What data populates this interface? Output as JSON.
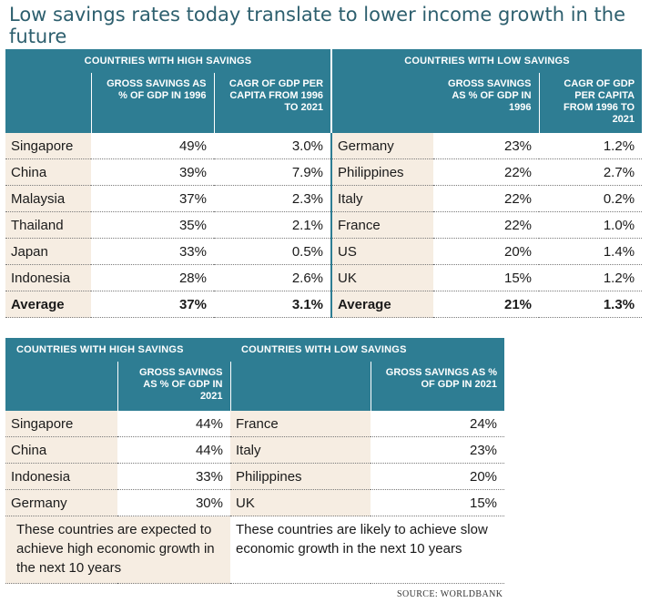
{
  "title": "Low savings rates today translate to lower income growth in the future",
  "table1": {
    "group_high": "COUNTRIES WITH HIGH SAVINGS",
    "group_low": "COUNTRIES WITH LOW SAVINGS",
    "header_high_savings": "GROSS SAVINGS AS % OF GDP IN 1996",
    "header_high_cagr": "CAGR OF GDP PER CAPITA FROM 1996 TO 2021",
    "header_low_savings": "GROSS SAVINGS AS % OF GDP IN 1996",
    "header_low_cagr": "CAGR OF GDP PER CAPITA FROM 1996 TO 2021",
    "rows": [
      {
        "high_country": "Singapore",
        "high_savings": "49%",
        "high_cagr": "3.0%",
        "low_country": "Germany",
        "low_savings": "23%",
        "low_cagr": "1.2%"
      },
      {
        "high_country": "China",
        "high_savings": "39%",
        "high_cagr": "7.9%",
        "low_country": "Philippines",
        "low_savings": "22%",
        "low_cagr": "2.7%"
      },
      {
        "high_country": "Malaysia",
        "high_savings": "37%",
        "high_cagr": "2.3%",
        "low_country": "Italy",
        "low_savings": "22%",
        "low_cagr": "0.2%"
      },
      {
        "high_country": "Thailand",
        "high_savings": "35%",
        "high_cagr": "2.1%",
        "low_country": "France",
        "low_savings": "22%",
        "low_cagr": "1.0%"
      },
      {
        "high_country": "Japan",
        "high_savings": "33%",
        "high_cagr": "0.5%",
        "low_country": "US",
        "low_savings": "20%",
        "low_cagr": "1.4%"
      },
      {
        "high_country": "Indonesia",
        "high_savings": "28%",
        "high_cagr": "2.6%",
        "low_country": "UK",
        "low_savings": "15%",
        "low_cagr": "1.2%"
      },
      {
        "high_country": "Average",
        "high_savings": "37%",
        "high_cagr": "3.1%",
        "low_country": "Average",
        "low_savings": "21%",
        "low_cagr": "1.3%"
      }
    ]
  },
  "table2": {
    "group_high": "COUNTRIES WITH HIGH SAVINGS",
    "group_low": "COUNTRIES WITH LOW SAVINGS",
    "header_high_savings": "GROSS SAVINGS AS % OF GDP IN 2021",
    "header_low_savings": "GROSS SAVINGS AS % OF GDP IN 2021",
    "rows": [
      {
        "high_country": "Singapore",
        "high_savings": "44%",
        "low_country": "France",
        "low_savings": "24%"
      },
      {
        "high_country": "China",
        "high_savings": "44%",
        "low_country": "Italy",
        "low_savings": "23%"
      },
      {
        "high_country": "Indonesia",
        "high_savings": "33%",
        "low_country": "Philippines",
        "low_savings": "20%"
      },
      {
        "high_country": "Germany",
        "high_savings": "30%",
        "low_country": "UK",
        "low_savings": "15%"
      }
    ],
    "note_high": "These countries are expected to achieve high economic growth in the next 10 years",
    "note_low": "These countries are likely to achieve slow economic growth in the next 10 years"
  },
  "source": "SOURCE: WORLDBANK",
  "colors": {
    "header": "#2e7d93",
    "row_tint": "#f6ede2",
    "title": "#2d5f6e"
  }
}
